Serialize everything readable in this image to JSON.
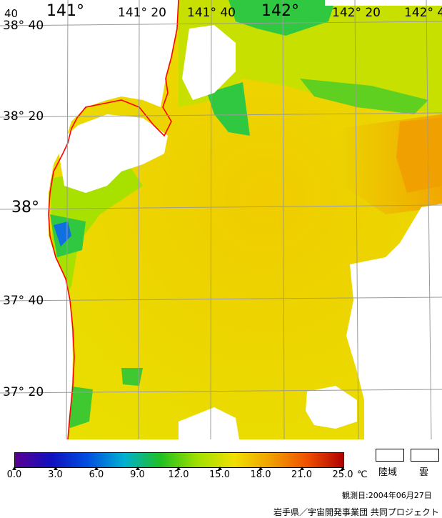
{
  "map": {
    "lon_labels": [
      "141°",
      "141° 20",
      "141° 40",
      "142°",
      "142° 20",
      "142° 4"
    ],
    "lat_labels": [
      "38° 40",
      "38° 20",
      "38°",
      "37° 40",
      "37° 20"
    ],
    "corner_label": "40",
    "coastline_color": "#ff0000",
    "grid_color": "#9a9a9a"
  },
  "legend": {
    "ticks": [
      "0.0",
      "3.0",
      "6.0",
      "9.0",
      "12.0",
      "15.0",
      "18.0",
      "21.0",
      "25.0"
    ],
    "unit": "℃",
    "stops": [
      "#5a0090",
      "#1010c0",
      "#0050e0",
      "#00b0d0",
      "#20c020",
      "#a0e000",
      "#f0e000",
      "#f0a000",
      "#f05000",
      "#b00000"
    ],
    "land_label": "陸域",
    "cloud_label": "雲"
  },
  "observation_date": "観測日:2004年06月27日",
  "credit": "岩手県／宇宙開発事業団 共同プロジェクト"
}
